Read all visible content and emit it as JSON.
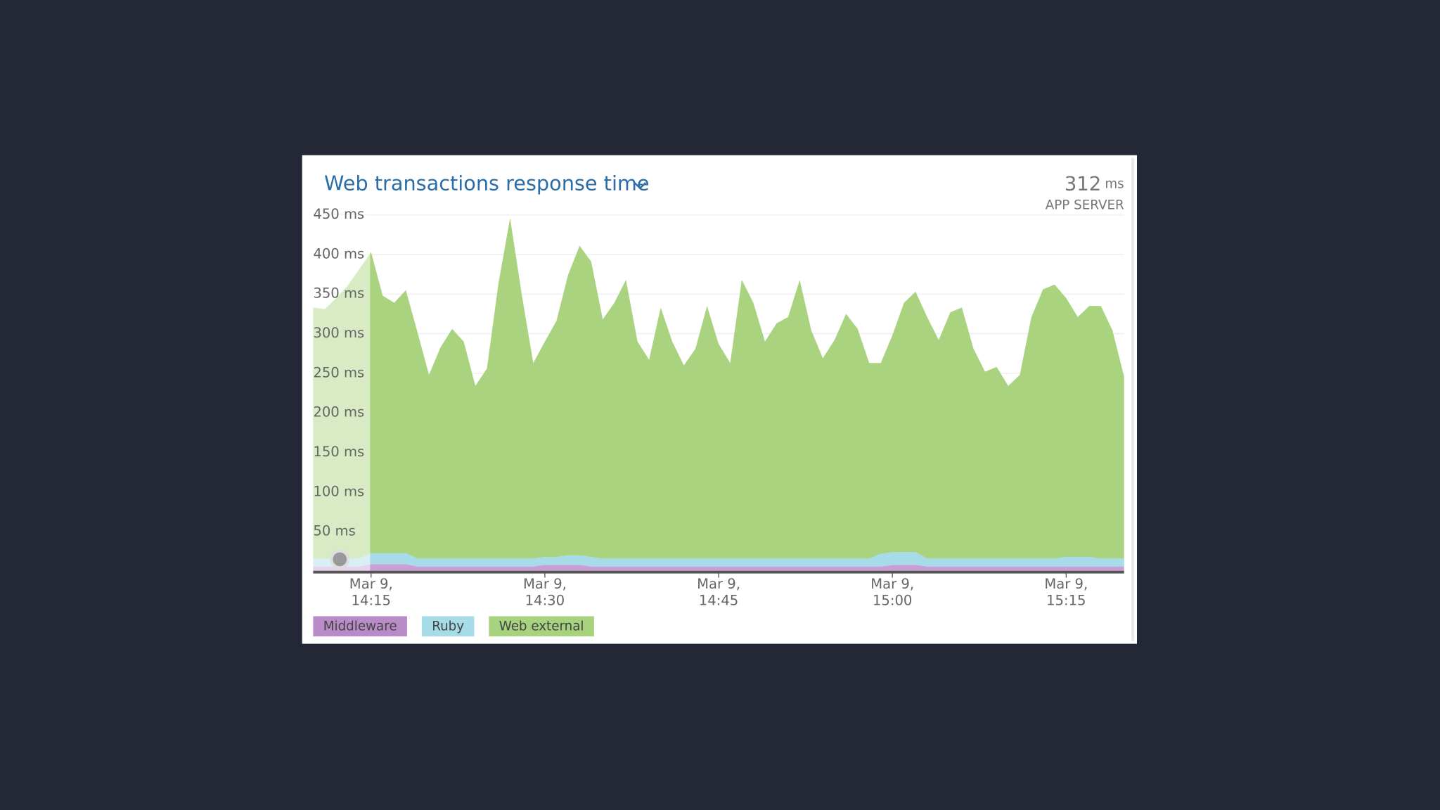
{
  "chart_data": {
    "type": "stacked_area",
    "title": "Web transactions response time",
    "summary": {
      "value": "312",
      "unit": "ms",
      "label": "APP SERVER"
    },
    "x": [
      "14:10",
      "14:11",
      "14:12",
      "14:13",
      "14:14",
      "14:15",
      "14:16",
      "14:17",
      "14:18",
      "14:19",
      "14:20",
      "14:21",
      "14:22",
      "14:23",
      "14:24",
      "14:25",
      "14:26",
      "14:27",
      "14:28",
      "14:29",
      "14:30",
      "14:31",
      "14:32",
      "14:33",
      "14:34",
      "14:35",
      "14:36",
      "14:37",
      "14:38",
      "14:39",
      "14:40",
      "14:41",
      "14:42",
      "14:43",
      "14:44",
      "14:45",
      "14:46",
      "14:47",
      "14:48",
      "14:49",
      "14:50",
      "14:51",
      "14:52",
      "14:53",
      "14:54",
      "14:55",
      "14:56",
      "14:57",
      "14:58",
      "14:59",
      "15:00",
      "15:01",
      "15:02",
      "15:03",
      "15:04",
      "15:05",
      "15:06",
      "15:07",
      "15:08",
      "15:09",
      "15:10",
      "15:11",
      "15:12",
      "15:13",
      "15:14",
      "15:15",
      "15:16",
      "15:17",
      "15:18",
      "15:19",
      "15:20"
    ],
    "xlim": [
      "14:10",
      "15:20"
    ],
    "xticks": [
      {
        "value": "14:15",
        "label": "Mar 9,\n14:15"
      },
      {
        "value": "14:30",
        "label": "Mar 9,\n14:30"
      },
      {
        "value": "14:45",
        "label": "Mar 9,\n14:45"
      },
      {
        "value": "15:00",
        "label": "Mar 9,\n15:00"
      },
      {
        "value": "15:15",
        "label": "Mar 9,\n15:15"
      }
    ],
    "ylim": [
      0,
      450
    ],
    "yticks": [
      {
        "value": 50,
        "label": "50 ms"
      },
      {
        "value": 100,
        "label": "100 ms"
      },
      {
        "value": 150,
        "label": "150 ms"
      },
      {
        "value": 200,
        "label": "200 ms"
      },
      {
        "value": 250,
        "label": "250 ms"
      },
      {
        "value": 300,
        "label": "300 ms"
      },
      {
        "value": 350,
        "label": "350 ms"
      },
      {
        "value": 400,
        "label": "400 ms"
      },
      {
        "value": 450,
        "label": "450 ms"
      }
    ],
    "grid": true,
    "legend": "bottom-left",
    "series": [
      {
        "name": "Middleware",
        "color": "#c9a0d6",
        "legend_color": "#b98cc8",
        "values": [
          6,
          6,
          6,
          6,
          6,
          9,
          9,
          9,
          9,
          6,
          6,
          6,
          6,
          6,
          6,
          6,
          6,
          6,
          6,
          6,
          8,
          8,
          8,
          8,
          6,
          6,
          6,
          6,
          6,
          6,
          6,
          6,
          6,
          6,
          6,
          6,
          6,
          6,
          6,
          6,
          6,
          6,
          6,
          6,
          6,
          6,
          6,
          6,
          6,
          6,
          8,
          8,
          8,
          6,
          6,
          6,
          6,
          6,
          6,
          6,
          6,
          6,
          6,
          6,
          6,
          6,
          6,
          6,
          6,
          6,
          6
        ]
      },
      {
        "name": "Ruby",
        "color": "#a8dbea",
        "legend_color": "#a6dbe8",
        "values": [
          10,
          10,
          10,
          10,
          10,
          14,
          14,
          14,
          14,
          10,
          10,
          10,
          10,
          10,
          10,
          10,
          10,
          10,
          10,
          10,
          10,
          10,
          12,
          12,
          12,
          10,
          10,
          10,
          10,
          10,
          10,
          10,
          10,
          10,
          10,
          10,
          10,
          10,
          10,
          10,
          10,
          10,
          10,
          10,
          10,
          10,
          10,
          10,
          10,
          16,
          16,
          16,
          16,
          10,
          10,
          10,
          10,
          10,
          10,
          10,
          10,
          10,
          10,
          10,
          10,
          12,
          12,
          12,
          10,
          10,
          10
        ]
      },
      {
        "name": "Web external",
        "color": "#a9d37f",
        "legend_color": "#a8d37e",
        "values": [
          317,
          315,
          329,
          345,
          366,
          380,
          325,
          316,
          332,
          286,
          232,
          267,
          290,
          274,
          218,
          240,
          348,
          430,
          334,
          247,
          272,
          298,
          354,
          391,
          373,
          302,
          323,
          352,
          274,
          251,
          317,
          274,
          244,
          265,
          319,
          271,
          247,
          352,
          323,
          274,
          297,
          305,
          352,
          288,
          253,
          276,
          309,
          290,
          247,
          241,
          274,
          315,
          329,
          305,
          276,
          311,
          317,
          265,
          236,
          242,
          218,
          232,
          305,
          340,
          346,
          327,
          303,
          317,
          319,
          288,
          230
        ]
      }
    ]
  }
}
